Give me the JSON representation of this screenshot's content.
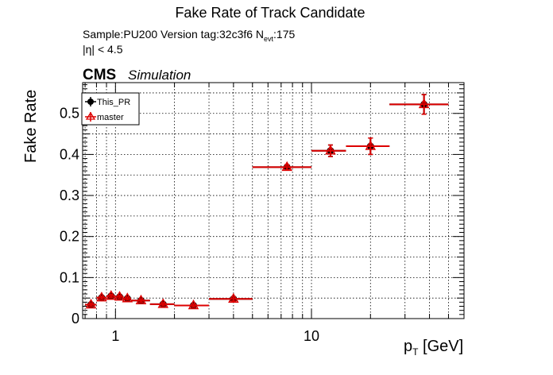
{
  "chart_data": {
    "type": "scatter",
    "title": "Fake Rate of Track Candidate",
    "sample_text": "Sample:PU200   Version tag:32c3f6  N",
    "nevt_sub": "evt",
    "nevt_value": ":175",
    "eta_text": "|η| < 4.5",
    "cms_label": "CMS",
    "simulation_label": "Simulation",
    "ylabel": "Fake Rate",
    "xlabel": "p",
    "xlabel_sub": "T",
    "xlabel_unit": " [GeV]",
    "xscale": "log",
    "xlim": [
      0.68,
      60
    ],
    "ylim": [
      0,
      0.575
    ],
    "grid": true,
    "legend_position": "top-left",
    "x_tick_labels": [
      {
        "value": 1,
        "label": "1"
      },
      {
        "value": 10,
        "label": "10"
      }
    ],
    "y_tick_labels": [
      {
        "value": 0,
        "label": "0"
      },
      {
        "value": 0.1,
        "label": "0.1"
      },
      {
        "value": 0.2,
        "label": "0.2"
      },
      {
        "value": 0.3,
        "label": "0.3"
      },
      {
        "value": 0.4,
        "label": "0.4"
      },
      {
        "value": 0.5,
        "label": "0.5"
      }
    ],
    "series": [
      {
        "name": "This_PR",
        "color": "#000000",
        "marker": "filled-circle",
        "points": [
          {
            "x": 0.75,
            "xlo": 0.7,
            "xhi": 0.8,
            "y": 0.034,
            "yerr": 0.004
          },
          {
            "x": 0.85,
            "xlo": 0.8,
            "xhi": 0.9,
            "y": 0.051,
            "yerr": 0.004
          },
          {
            "x": 0.95,
            "xlo": 0.9,
            "xhi": 1.0,
            "y": 0.055,
            "yerr": 0.004
          },
          {
            "x": 1.05,
            "xlo": 1.0,
            "xhi": 1.1,
            "y": 0.053,
            "yerr": 0.004
          },
          {
            "x": 1.15,
            "xlo": 1.1,
            "xhi": 1.2,
            "y": 0.049,
            "yerr": 0.004
          },
          {
            "x": 1.35,
            "xlo": 1.2,
            "xhi": 1.5,
            "y": 0.044,
            "yerr": 0.004
          },
          {
            "x": 1.75,
            "xlo": 1.5,
            "xhi": 2.0,
            "y": 0.035,
            "yerr": 0.004
          },
          {
            "x": 2.5,
            "xlo": 2.0,
            "xhi": 3.0,
            "y": 0.032,
            "yerr": 0.004
          },
          {
            "x": 4.0,
            "xlo": 3.0,
            "xhi": 5.0,
            "y": 0.048,
            "yerr": 0.005
          },
          {
            "x": 7.5,
            "xlo": 5.0,
            "xhi": 10.0,
            "y": 0.369,
            "yerr": 0.006
          },
          {
            "x": 12.5,
            "xlo": 10.0,
            "xhi": 15.0,
            "y": 0.409,
            "yerr": 0.014
          },
          {
            "x": 20.0,
            "xlo": 15.0,
            "xhi": 25.0,
            "y": 0.42,
            "yerr": 0.02
          },
          {
            "x": 37.5,
            "xlo": 25.0,
            "xhi": 50.0,
            "y": 0.522,
            "yerr": 0.024
          }
        ]
      },
      {
        "name": "master",
        "color": "#dd0000",
        "marker": "open-triangle",
        "points": [
          {
            "x": 0.75,
            "xlo": 0.7,
            "xhi": 0.8,
            "y": 0.034,
            "yerr": 0.004
          },
          {
            "x": 0.85,
            "xlo": 0.8,
            "xhi": 0.9,
            "y": 0.051,
            "yerr": 0.004
          },
          {
            "x": 0.95,
            "xlo": 0.9,
            "xhi": 1.0,
            "y": 0.055,
            "yerr": 0.004
          },
          {
            "x": 1.05,
            "xlo": 1.0,
            "xhi": 1.1,
            "y": 0.053,
            "yerr": 0.004
          },
          {
            "x": 1.15,
            "xlo": 1.1,
            "xhi": 1.2,
            "y": 0.049,
            "yerr": 0.004
          },
          {
            "x": 1.35,
            "xlo": 1.2,
            "xhi": 1.5,
            "y": 0.044,
            "yerr": 0.004
          },
          {
            "x": 1.75,
            "xlo": 1.5,
            "xhi": 2.0,
            "y": 0.035,
            "yerr": 0.004
          },
          {
            "x": 2.5,
            "xlo": 2.0,
            "xhi": 3.0,
            "y": 0.032,
            "yerr": 0.004
          },
          {
            "x": 4.0,
            "xlo": 3.0,
            "xhi": 5.0,
            "y": 0.048,
            "yerr": 0.005
          },
          {
            "x": 7.5,
            "xlo": 5.0,
            "xhi": 10.0,
            "y": 0.369,
            "yerr": 0.006
          },
          {
            "x": 12.5,
            "xlo": 10.0,
            "xhi": 15.0,
            "y": 0.409,
            "yerr": 0.014
          },
          {
            "x": 20.0,
            "xlo": 15.0,
            "xhi": 25.0,
            "y": 0.42,
            "yerr": 0.02
          },
          {
            "x": 37.5,
            "xlo": 25.0,
            "xhi": 50.0,
            "y": 0.522,
            "yerr": 0.024
          }
        ]
      }
    ]
  }
}
